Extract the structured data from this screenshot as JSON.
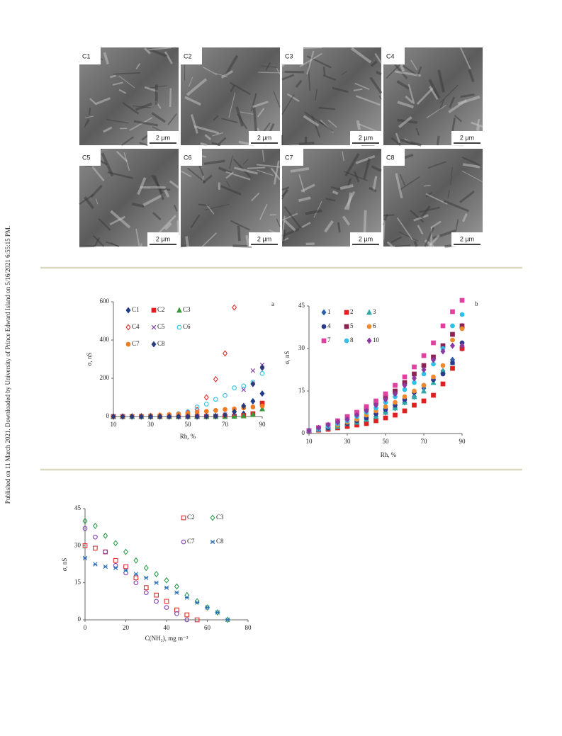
{
  "side_text": "Published on 11 March 2021. Downloaded by University of Prince Edward Island on 5/16/2021 6:55:15 PM.",
  "images": [
    {
      "label": "C1",
      "scale": "2 µm"
    },
    {
      "label": "C2",
      "scale": "2 µm"
    },
    {
      "label": "C3",
      "scale": "2 µm"
    },
    {
      "label": "C4",
      "scale": "2 µm"
    },
    {
      "label": "C5",
      "scale": "2 µm"
    },
    {
      "label": "C6",
      "scale": "2 µm"
    },
    {
      "label": "C7",
      "scale": "2 µm"
    },
    {
      "label": "C8",
      "scale": "2 µm"
    }
  ],
  "chart_data": [
    {
      "type": "scatter",
      "panel_label": "a",
      "x_label": "Rh, %",
      "y_label": "σ, nS",
      "x": [
        10,
        15,
        20,
        25,
        30,
        35,
        40,
        45,
        50,
        55,
        60,
        65,
        70,
        75,
        80,
        85,
        90
      ],
      "xlim": [
        10,
        90
      ],
      "xticks": [
        10,
        30,
        50,
        70,
        90
      ],
      "ylim": [
        0,
        600
      ],
      "yticks": [
        0,
        200,
        400,
        600
      ],
      "series": [
        {
          "name": "C1",
          "color": "#1f3c88",
          "marker": "diamond",
          "filled": true,
          "values": [
            0,
            0,
            0,
            0,
            0,
            0,
            0,
            0,
            0,
            0,
            0,
            1,
            2,
            5,
            15,
            80,
            120
          ]
        },
        {
          "name": "C2",
          "color": "#e02020",
          "marker": "square",
          "filled": true,
          "values": [
            0,
            0,
            0,
            0,
            0,
            0,
            0,
            0,
            0,
            0,
            0,
            0,
            1,
            2,
            5,
            15,
            70
          ]
        },
        {
          "name": "C3",
          "color": "#3a9a3a",
          "marker": "triangle",
          "filled": true,
          "values": [
            0,
            0,
            0,
            0,
            0,
            0,
            0,
            0,
            0,
            0,
            0,
            0,
            0,
            1,
            3,
            10,
            40
          ]
        },
        {
          "name": "C4",
          "color": "#e03030",
          "marker": "diamond",
          "filled": false,
          "values": [
            0,
            0,
            1,
            2,
            3,
            5,
            8,
            12,
            20,
            35,
            100,
            195,
            330,
            570,
            null,
            null,
            null
          ]
        },
        {
          "name": "C5",
          "color": "#7a3aa0",
          "marker": "x",
          "filled": false,
          "values": [
            0,
            0,
            0,
            0,
            0,
            0,
            0,
            0,
            0,
            1,
            2,
            5,
            10,
            20,
            140,
            240,
            270
          ]
        },
        {
          "name": "C6",
          "color": "#30c0e8",
          "marker": "circle",
          "filled": false,
          "values": [
            null,
            null,
            0,
            1,
            2,
            4,
            8,
            15,
            25,
            50,
            65,
            90,
            110,
            150,
            160,
            180,
            225
          ]
        },
        {
          "name": "C7",
          "color": "#f07a20",
          "marker": "circle",
          "filled": true,
          "values": [
            0,
            1,
            2,
            3,
            5,
            7,
            10,
            13,
            17,
            22,
            27,
            32,
            37,
            40,
            45,
            50,
            55
          ]
        },
        {
          "name": "C8",
          "color": "#2c3a7a",
          "marker": "diamond",
          "filled": true,
          "values": [
            0,
            0,
            0,
            0,
            0,
            0,
            0,
            0,
            0,
            0,
            1,
            3,
            8,
            25,
            55,
            170,
            255
          ]
        }
      ]
    },
    {
      "type": "scatter",
      "panel_label": "b",
      "x_label": "Rh, %",
      "y_label": "σ, nS",
      "x": [
        10,
        15,
        20,
        25,
        30,
        35,
        40,
        45,
        50,
        55,
        60,
        65,
        70,
        75,
        80,
        85,
        90
      ],
      "xlim": [
        10,
        90
      ],
      "xticks": [
        10,
        30,
        50,
        70,
        90
      ],
      "ylim": [
        0,
        45
      ],
      "yticks": [
        0,
        15,
        30,
        45
      ],
      "series": [
        {
          "name": "1",
          "color": "#2e5eaa",
          "marker": "diamond",
          "filled": true,
          "values": [
            1,
            1.5,
            2,
            2.5,
            3,
            4,
            5,
            6,
            7.5,
            9,
            11,
            13,
            16,
            19,
            22,
            26,
            30
          ]
        },
        {
          "name": "2",
          "color": "#e02020",
          "marker": "square",
          "filled": true,
          "values": [
            1,
            1.2,
            1.5,
            2,
            2.5,
            3,
            3.5,
            4.5,
            5.5,
            6.5,
            8,
            10,
            11.5,
            13.5,
            17.5,
            23,
            30
          ]
        },
        {
          "name": "3",
          "color": "#30a8a8",
          "marker": "triangle",
          "filled": true,
          "values": [
            1,
            1.5,
            2,
            2.5,
            3.5,
            4,
            5,
            6,
            7.5,
            9,
            11,
            13,
            15,
            18,
            22,
            25,
            38
          ]
        },
        {
          "name": "4",
          "color": "#2c3a8c",
          "marker": "circle",
          "filled": true,
          "values": [
            1,
            1.5,
            2,
            3,
            3.5,
            4.5,
            5.5,
            7,
            8.5,
            10,
            12,
            14.5,
            17,
            19,
            21,
            25,
            32
          ]
        },
        {
          "name": "5",
          "color": "#8b2252",
          "marker": "square",
          "filled": true,
          "values": [
            1,
            2,
            3,
            4,
            5.5,
            7,
            9,
            11,
            13,
            15,
            18,
            21,
            24,
            27,
            31,
            35,
            38
          ]
        },
        {
          "name": "6",
          "color": "#f08a2c",
          "marker": "circle",
          "filled": true,
          "values": [
            1,
            1.5,
            2.5,
            3,
            4,
            5,
            6.5,
            8,
            9.5,
            11,
            13,
            15,
            17,
            20,
            24,
            33,
            37
          ]
        },
        {
          "name": "7",
          "color": "#e040a0",
          "marker": "square",
          "filled": true,
          "values": [
            1,
            2,
            3,
            4.5,
            6,
            7.5,
            9.5,
            11.5,
            14,
            17,
            20,
            23.5,
            27.5,
            32,
            38,
            43,
            47
          ]
        },
        {
          "name": "8",
          "color": "#30c0e8",
          "marker": "circle",
          "filled": true,
          "values": [
            1,
            1.5,
            2.5,
            3.5,
            4.5,
            6,
            7.5,
            9,
            11,
            13,
            15.5,
            18,
            21,
            24.5,
            30,
            38,
            42
          ]
        },
        {
          "name": "10",
          "color": "#8a3aa0",
          "marker": "diamond",
          "filled": true,
          "values": [
            1,
            2,
            3,
            4,
            5,
            6.5,
            8,
            10,
            12,
            14,
            17,
            19.5,
            22.5,
            26,
            29,
            31,
            31
          ]
        }
      ]
    },
    {
      "type": "scatter",
      "x_label": "C(NH₃), mg m⁻³",
      "y_label": "σ, nS",
      "x": [
        0,
        5,
        10,
        15,
        20,
        25,
        30,
        35,
        40,
        45,
        50,
        55,
        60,
        65,
        70
      ],
      "xlim": [
        0,
        80
      ],
      "xticks": [
        0,
        20,
        40,
        60,
        80
      ],
      "ylim": [
        0,
        45
      ],
      "yticks": [
        0,
        15,
        30,
        45
      ],
      "series": [
        {
          "name": "C2",
          "color": "#e03030",
          "marker": "square",
          "filled": false,
          "values": [
            30,
            29,
            27.5,
            24,
            21.5,
            17,
            13,
            10,
            7.5,
            4,
            2,
            0,
            null,
            null,
            null
          ]
        },
        {
          "name": "C3",
          "color": "#30a050",
          "marker": "diamond",
          "filled": false,
          "values": [
            40,
            38,
            34,
            31,
            27.5,
            24,
            21,
            18.5,
            16,
            13.5,
            10,
            7.5,
            5,
            3,
            0
          ]
        },
        {
          "name": "C7",
          "color": "#8040b0",
          "marker": "circle",
          "filled": false,
          "values": [
            37,
            33.5,
            27.5,
            22,
            19,
            15,
            11,
            7.5,
            5,
            2.5,
            0,
            null,
            null,
            null,
            null
          ]
        },
        {
          "name": "C8",
          "color": "#2a70b8",
          "marker": "star",
          "filled": false,
          "values": [
            25,
            22.5,
            21.5,
            21,
            20,
            18.5,
            17,
            15,
            13,
            11,
            9,
            7,
            5,
            3,
            0
          ]
        }
      ]
    }
  ]
}
